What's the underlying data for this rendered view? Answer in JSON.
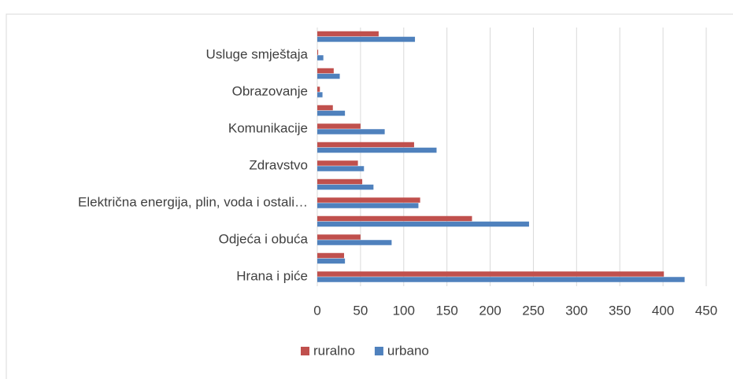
{
  "chart_data": {
    "type": "bar",
    "orientation": "horizontal",
    "categories": [
      "Hrana i piće",
      null,
      "Odjeća i obuća",
      null,
      "Električna energija, plin, voda i ostali…",
      null,
      "Zdravstvo",
      null,
      "Komunikacije",
      null,
      "Obrazovanje",
      null,
      "Usluge smještaja",
      null
    ],
    "series": [
      {
        "name": "ruralno",
        "color": "#c0504d",
        "values": [
          401,
          31,
          50,
          179,
          119,
          52,
          47,
          112,
          50,
          18,
          3,
          19,
          1,
          71
        ]
      },
      {
        "name": "urbano",
        "color": "#4f81bd",
        "values": [
          425,
          32,
          86,
          245,
          117,
          65,
          54,
          138,
          78,
          32,
          6,
          26,
          7,
          113
        ]
      }
    ],
    "xlim": [
      0,
      450
    ],
    "xticks": [
      0,
      50,
      100,
      150,
      200,
      250,
      300,
      350,
      400,
      450
    ],
    "grid": true,
    "legend": "bottom"
  }
}
